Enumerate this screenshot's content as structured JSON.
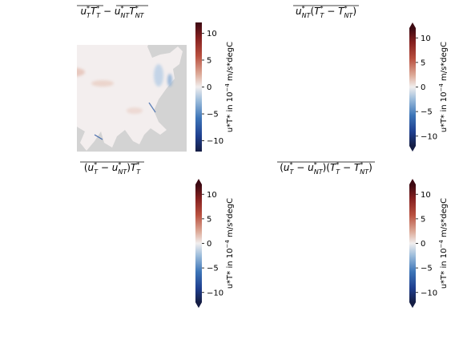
{
  "chart_data": [
    {
      "type": "heatmap",
      "title": "u*_T T*_T − u*_NT T*_NT (overlined)",
      "title_parts": {
        "a": "u",
        "a_sup": "*",
        "a_sub": "T",
        "b": "T",
        "b_sup": "*",
        "b_sub": "T",
        "op": "−",
        "c": "u",
        "c_sup": "*",
        "c_sub": "NT",
        "d": "T",
        "d_sup": "*",
        "d_sub": "NT"
      },
      "colorbar": {
        "label": "u*T* in 10^-4 m/s*degC",
        "label_text": "u*T* in 10",
        "label_exp": "−4",
        "label_unit": " m/s*degC",
        "ticks": [
          "−10",
          "−5",
          "0",
          "5",
          "10"
        ],
        "vmin": -12,
        "vmax": 12,
        "extend": "neither",
        "cmap": "balance"
      },
      "land_color": "#d3d3d3"
    },
    {
      "type": "heatmap",
      "title": "u*_NT (T*_T − T*_NT) (overlined)",
      "colorbar": {
        "label": "u*T* in 10^-4 m/s*degC",
        "label_text": "u*T* in 10",
        "label_exp": "−4",
        "label_unit": " m/s*degC",
        "ticks": [
          "−10",
          "−5",
          "0",
          "5",
          "10"
        ],
        "vmin": -12,
        "vmax": 12,
        "extend": "both",
        "cmap": "balance"
      },
      "land_color": "#d3d3d3"
    },
    {
      "type": "heatmap",
      "title": "(u*_T − u*_NT) T*_T (overlined)",
      "colorbar": {
        "label": "u*T* in 10^-4 m/s*degC",
        "label_text": "u*T* in 10",
        "label_exp": "−4",
        "label_unit": " m/s*degC",
        "ticks": [
          "−10",
          "−5",
          "0",
          "5",
          "10"
        ],
        "vmin": -12,
        "vmax": 12,
        "extend": "both",
        "cmap": "balance"
      },
      "land_color": "#d3d3d3"
    },
    {
      "type": "heatmap",
      "title": "(u*_T − u*_NT)(T*_T − T*_NT) (overlined)",
      "colorbar": {
        "label": "u*T* in 10^-4 m/s*degC",
        "label_text": "u*T* in 10",
        "label_exp": "−4",
        "label_unit": " m/s*degC",
        "ticks": [
          "−10",
          "−5",
          "0",
          "5",
          "10"
        ],
        "vmin": -12,
        "vmax": 12,
        "extend": "both",
        "cmap": "balance"
      },
      "land_color": "#d3d3d3"
    }
  ],
  "colors": {
    "land": "#d3d3d3",
    "ocean_neutral": "#f3eeee",
    "pos_strong": "#5c0b17",
    "pos_mid": "#b3453c",
    "pos_light": "#e3b8a8",
    "neg_strong": "#1c2f6b",
    "neg_mid": "#3a6bb5",
    "neg_light": "#a9c3df"
  }
}
